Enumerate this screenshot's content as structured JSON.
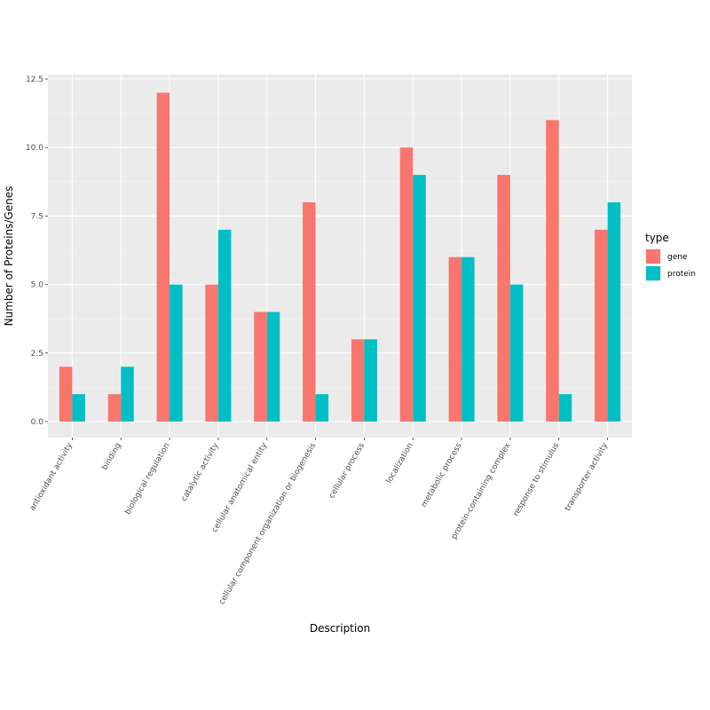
{
  "chart_data": {
    "type": "bar",
    "xlabel": "Description",
    "ylabel": "Number of Proteins/Genes",
    "ylim": [
      0,
      12.5
    ],
    "yticks": [
      0.0,
      2.5,
      5.0,
      7.5,
      10.0,
      12.5
    ],
    "ytick_labels": [
      "0.0",
      "2.5",
      "5.0",
      "7.5",
      "10.0",
      "12.5"
    ],
    "grid": true,
    "legend_title": "type",
    "legend_position": "right",
    "categories": [
      "antioxidant activity",
      "binding",
      "biological regulation",
      "catalytic activity",
      "cellular anatomical entity",
      "cellular component organization or biogenesis",
      "cellular process",
      "localization",
      "metabolic process",
      "protein-containing complex",
      "response to stimulus",
      "transporter activity"
    ],
    "series": [
      {
        "name": "gene",
        "color": "#F8766D",
        "values": [
          2,
          1,
          12,
          5,
          4,
          8,
          3,
          10,
          6,
          9,
          11,
          7
        ]
      },
      {
        "name": "protein",
        "color": "#00BFC4",
        "values": [
          1,
          2,
          5,
          7,
          4,
          1,
          3,
          9,
          6,
          5,
          1,
          8
        ]
      }
    ]
  }
}
